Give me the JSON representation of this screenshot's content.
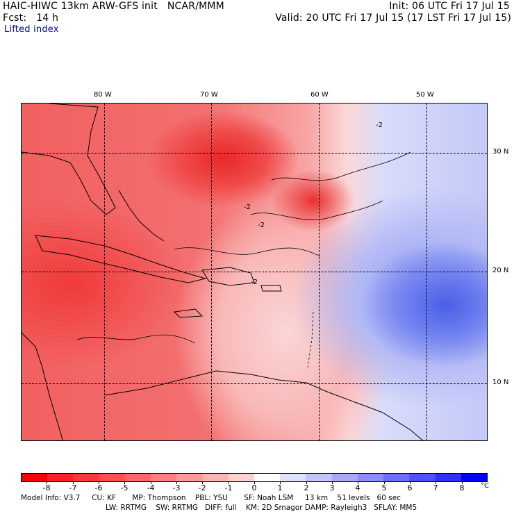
{
  "header": {
    "left_line1": "HAIC-HIWC 13km ARW-GFS init   NCAR/MMM",
    "left_line2": "Fcst:   14 h",
    "field": "Lifted index",
    "right_line1": "Init: 06 UTC Fri 17 Jul 15",
    "right_line2": "Valid: 20 UTC Fri 17 Jul 15 (17 LST Fri 17 Jul 15)"
  },
  "map": {
    "lon_labels": [
      "80 W",
      "70 W",
      "60 W",
      "50 W"
    ],
    "lat_labels": [
      "30 N",
      "20 N",
      "10 N"
    ],
    "contour_label": "-2",
    "colors": {
      "strong_negative": "#e82828",
      "weak_negative": "#fbd6d6",
      "near_zero": "#ffffff",
      "positive": "#4a5fe6"
    }
  },
  "colorbar": {
    "unit": "°C",
    "tick_labels": [
      "-8",
      "-7",
      "-6",
      "-5",
      "-4",
      "-3",
      "-2",
      "-1",
      "0",
      "1",
      "2",
      "3",
      "4",
      "5",
      "6",
      "7",
      "8"
    ],
    "colors": [
      "#ff0000",
      "#ff2020",
      "#ff3838",
      "#ff5050",
      "#ff6868",
      "#ff8080",
      "#ff9a9a",
      "#ffb4b4",
      "#ffd0d0",
      "#ffffff",
      "#e0e0ff",
      "#c4c4ff",
      "#a8a8ff",
      "#8c8cff",
      "#7070ff",
      "#5050ff",
      "#3030ff",
      "#0000ff"
    ]
  },
  "footer": {
    "line1": "Model Info: V3.7     CU: KF       MP: Thompson    PBL: YSU       SF: Noah LSM     13 km    51 levels   60 sec",
    "line2": "LW: RRTMG    SW: RRTMG   DIFF: full    KM: 2D Smagor DAMP: Rayleigh3   SFLAY: MM5"
  }
}
